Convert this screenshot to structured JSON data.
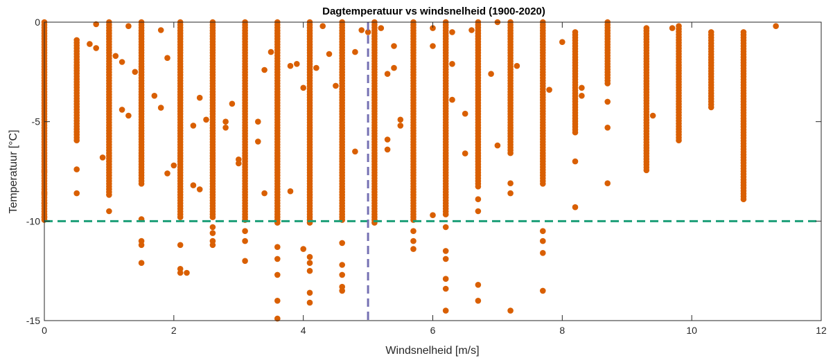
{
  "chart_data": {
    "type": "scatter",
    "title": "Dagtemperatuur vs windsnelheid (1900-2020)",
    "xlabel": "Windsnelheid [m/s]",
    "ylabel": "Temperatuur [°C]",
    "xlim": [
      0,
      12
    ],
    "ylim": [
      -15,
      0
    ],
    "xticks": [
      "0",
      "2",
      "4",
      "6",
      "8",
      "10",
      "12"
    ],
    "yticks": [
      "0",
      "-5",
      "-10",
      "-15"
    ],
    "grid": false,
    "point_color": "#d95f02",
    "reference_lines": [
      {
        "orientation": "horizontal",
        "value": -10,
        "color": "#1b9e77",
        "style": "dashed"
      },
      {
        "orientation": "vertical",
        "value": 5,
        "color": "#7570b3",
        "style": "dashed"
      }
    ],
    "columns": [
      {
        "x": 0.0,
        "y_min": -10.0,
        "y_max": 0.0,
        "extra": [
          -8.6,
          -9.1,
          -9.8,
          -7.5
        ]
      },
      {
        "x": 0.5,
        "y_min": -6.0,
        "y_max": -0.9,
        "extra": [
          -7.4,
          -8.6
        ]
      },
      {
        "x": 1.0,
        "y_min": -8.8,
        "y_max": 0.0,
        "extra": [
          -9.5
        ]
      },
      {
        "x": 1.5,
        "y_min": -8.2,
        "y_max": 0.0,
        "extra": [
          -9.9,
          -11.0,
          -11.2,
          -12.1
        ]
      },
      {
        "x": 2.1,
        "y_min": -9.8,
        "y_max": 0.0,
        "extra": [
          -11.2,
          -12.4,
          -12.6
        ]
      },
      {
        "x": 2.6,
        "y_min": -9.9,
        "y_max": 0.0,
        "extra": [
          -10.3,
          -10.6,
          -11.0,
          -11.2
        ]
      },
      {
        "x": 3.1,
        "y_min": -10.0,
        "y_max": 0.0,
        "extra": [
          -10.5,
          -11.0,
          -12.0
        ]
      },
      {
        "x": 3.6,
        "y_min": -10.2,
        "y_max": 0.0,
        "extra": [
          -11.3,
          -11.9,
          -12.7,
          -14.0,
          -14.9
        ]
      },
      {
        "x": 4.1,
        "y_min": -10.2,
        "y_max": 0.0,
        "extra": [
          -11.8,
          -12.1,
          -12.5,
          -13.6,
          -14.1
        ]
      },
      {
        "x": 4.6,
        "y_min": -10.0,
        "y_max": 0.0,
        "extra": [
          -11.1,
          -12.2,
          -12.7,
          -13.3,
          -13.5
        ]
      },
      {
        "x": 5.1,
        "y_min": -10.1,
        "y_max": 0.0,
        "extra": []
      },
      {
        "x": 5.7,
        "y_min": -10.0,
        "y_max": 0.0,
        "extra": [
          -10.5,
          -11.0,
          -11.4
        ]
      },
      {
        "x": 6.2,
        "y_min": -9.7,
        "y_max": 0.0,
        "extra": [
          -10.3,
          -11.5,
          -11.9,
          -12.9,
          -13.4,
          -14.5
        ]
      },
      {
        "x": 6.7,
        "y_min": -8.3,
        "y_max": 0.0,
        "extra": [
          -8.9,
          -9.5,
          -13.2,
          -14.0
        ]
      },
      {
        "x": 7.2,
        "y_min": -6.6,
        "y_max": 0.0,
        "extra": [
          -8.1,
          -8.6,
          -14.5
        ]
      },
      {
        "x": 7.7,
        "y_min": -8.2,
        "y_max": 0.0,
        "extra": [
          -10.5,
          -11.0,
          -11.6,
          -13.5
        ]
      },
      {
        "x": 8.2,
        "y_min": -5.6,
        "y_max": -0.5,
        "extra": [
          -7.0,
          -9.3
        ]
      },
      {
        "x": 8.7,
        "y_min": -3.2,
        "y_max": 0.0,
        "extra": [
          -4.0,
          -5.3,
          -8.1
        ]
      },
      {
        "x": 9.3,
        "y_min": -7.5,
        "y_max": -0.3,
        "extra": []
      },
      {
        "x": 9.8,
        "y_min": -6.0,
        "y_max": -0.2,
        "extra": []
      },
      {
        "x": 10.3,
        "y_min": -4.4,
        "y_max": -0.5,
        "extra": []
      },
      {
        "x": 10.8,
        "y_min": -9.0,
        "y_max": -0.5,
        "extra": []
      }
    ],
    "scatter_points": [
      {
        "x": 0.8,
        "y": -0.1
      },
      {
        "x": 0.7,
        "y": -1.1
      },
      {
        "x": 0.8,
        "y": -1.3
      },
      {
        "x": 0.9,
        "y": -6.8
      },
      {
        "x": 1.1,
        "y": -1.7
      },
      {
        "x": 1.2,
        "y": -2.0
      },
      {
        "x": 1.2,
        "y": -4.4
      },
      {
        "x": 1.3,
        "y": -0.2
      },
      {
        "x": 1.3,
        "y": -4.7
      },
      {
        "x": 1.4,
        "y": -2.5
      },
      {
        "x": 1.7,
        "y": -3.7
      },
      {
        "x": 1.8,
        "y": -4.3
      },
      {
        "x": 1.9,
        "y": -7.6
      },
      {
        "x": 2.0,
        "y": -7.2
      },
      {
        "x": 1.8,
        "y": -0.4
      },
      {
        "x": 1.9,
        "y": -1.8
      },
      {
        "x": 2.2,
        "y": -12.6
      },
      {
        "x": 2.3,
        "y": -8.2
      },
      {
        "x": 2.4,
        "y": -8.4
      },
      {
        "x": 2.4,
        "y": -3.8
      },
      {
        "x": 2.3,
        "y": -5.2
      },
      {
        "x": 2.5,
        "y": -4.9
      },
      {
        "x": 2.8,
        "y": -5.0
      },
      {
        "x": 2.8,
        "y": -5.3
      },
      {
        "x": 2.9,
        "y": -4.1
      },
      {
        "x": 3.0,
        "y": -6.9
      },
      {
        "x": 3.0,
        "y": -7.1
      },
      {
        "x": 3.3,
        "y": -5.0
      },
      {
        "x": 3.3,
        "y": -6.0
      },
      {
        "x": 3.4,
        "y": -8.6
      },
      {
        "x": 3.4,
        "y": -2.4
      },
      {
        "x": 3.5,
        "y": -1.5
      },
      {
        "x": 3.8,
        "y": -2.2
      },
      {
        "x": 3.8,
        "y": -8.5
      },
      {
        "x": 3.9,
        "y": -2.1
      },
      {
        "x": 4.0,
        "y": -3.3
      },
      {
        "x": 4.0,
        "y": -11.4
      },
      {
        "x": 4.2,
        "y": -2.3
      },
      {
        "x": 4.3,
        "y": -0.2
      },
      {
        "x": 4.4,
        "y": -1.6
      },
      {
        "x": 4.5,
        "y": -3.2
      },
      {
        "x": 4.8,
        "y": -1.5
      },
      {
        "x": 4.8,
        "y": -6.5
      },
      {
        "x": 4.9,
        "y": -0.4
      },
      {
        "x": 5.0,
        "y": -0.5
      },
      {
        "x": 5.2,
        "y": -0.3
      },
      {
        "x": 5.3,
        "y": -2.6
      },
      {
        "x": 5.4,
        "y": -1.2
      },
      {
        "x": 5.4,
        "y": -2.3
      },
      {
        "x": 5.5,
        "y": -4.9
      },
      {
        "x": 5.5,
        "y": -5.2
      },
      {
        "x": 5.3,
        "y": -5.9
      },
      {
        "x": 5.3,
        "y": -6.4
      },
      {
        "x": 6.0,
        "y": -9.7
      },
      {
        "x": 6.0,
        "y": -1.2
      },
      {
        "x": 6.0,
        "y": -0.3
      },
      {
        "x": 6.3,
        "y": -0.5
      },
      {
        "x": 6.3,
        "y": -2.1
      },
      {
        "x": 6.3,
        "y": -3.9
      },
      {
        "x": 6.5,
        "y": -6.6
      },
      {
        "x": 6.5,
        "y": -4.6
      },
      {
        "x": 6.6,
        "y": -0.4
      },
      {
        "x": 6.9,
        "y": -2.6
      },
      {
        "x": 7.0,
        "y": -6.2
      },
      {
        "x": 7.0,
        "y": 0.0
      },
      {
        "x": 7.3,
        "y": -2.2
      },
      {
        "x": 7.8,
        "y": -3.4
      },
      {
        "x": 8.0,
        "y": -1.0
      },
      {
        "x": 8.3,
        "y": -3.3
      },
      {
        "x": 8.3,
        "y": -3.7
      },
      {
        "x": 9.4,
        "y": -4.7
      },
      {
        "x": 9.7,
        "y": -0.3
      },
      {
        "x": 11.3,
        "y": -0.2
      }
    ]
  }
}
